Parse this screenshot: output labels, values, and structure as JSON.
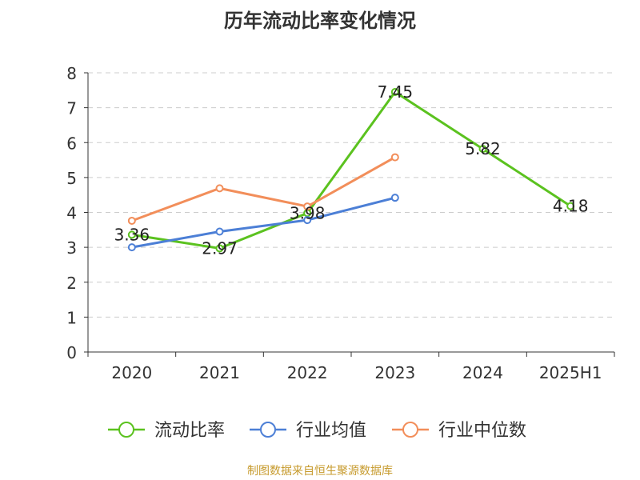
{
  "chart_data": {
    "type": "line",
    "title": "历年流动比率变化情况",
    "categories": [
      "2020",
      "2021",
      "2022",
      "2023",
      "2024",
      "2025H1"
    ],
    "ylim": [
      0,
      8
    ],
    "yticks": [
      "0",
      "1",
      "2",
      "3",
      "4",
      "5",
      "6",
      "7",
      "8"
    ],
    "grid": true,
    "legend": "bottom",
    "series": [
      {
        "name": "流动比率",
        "color": "#5bc21f",
        "values": [
          3.36,
          2.97,
          3.98,
          7.45,
          5.82,
          4.18
        ],
        "labels": [
          "3.36",
          "2.97",
          "3.98",
          "7.45",
          "5.82",
          "4.18"
        ]
      },
      {
        "name": "行业均值",
        "color": "#4c7fd6",
        "values": [
          3.0,
          3.45,
          3.78,
          4.42,
          null,
          null
        ]
      },
      {
        "name": "行业中位数",
        "color": "#f28e5a",
        "values": [
          3.76,
          4.69,
          4.17,
          5.58,
          null,
          null
        ]
      }
    ]
  },
  "source_note": "制图数据来自恒生聚源数据库",
  "source_note_color": "#c79b2e"
}
